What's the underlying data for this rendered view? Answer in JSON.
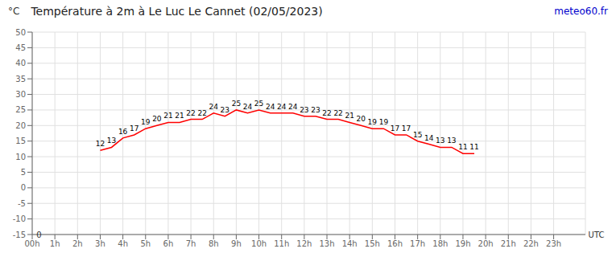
{
  "chart_data": {
    "type": "line",
    "title": "Température à 2m à Le Luc Le Cannet (02/05/2023)",
    "y_label": "°C",
    "x": [
      3.0,
      3.5,
      4.0,
      4.5,
      5.0,
      5.5,
      6.0,
      6.5,
      7.0,
      7.5,
      8.0,
      8.5,
      9.0,
      9.5,
      10.0,
      10.5,
      11.0,
      11.5,
      12.0,
      12.5,
      13.0,
      13.5,
      14.0,
      14.5,
      15.0,
      15.5,
      16.0,
      16.5,
      17.0,
      17.5,
      18.0,
      18.5,
      19.0,
      19.5
    ],
    "values": [
      12,
      13,
      16,
      17,
      19,
      20,
      21,
      21,
      22,
      22,
      24,
      23,
      25,
      24,
      25,
      24,
      24,
      24,
      23,
      23,
      22,
      22,
      21,
      20,
      19,
      19,
      17,
      17,
      15,
      14,
      13,
      13,
      11,
      11
    ],
    "color": "#ff0000",
    "data_labels": true,
    "grid": true,
    "xlim": [
      0,
      24.4
    ],
    "xticks": [
      {
        "value": 0,
        "label": "00h"
      },
      {
        "value": 1,
        "label": "1h"
      },
      {
        "value": 2,
        "label": "2h"
      },
      {
        "value": 3,
        "label": "3h"
      },
      {
        "value": 4,
        "label": "4h"
      },
      {
        "value": 5,
        "label": "5h"
      },
      {
        "value": 6,
        "label": "6h"
      },
      {
        "value": 7,
        "label": "7h"
      },
      {
        "value": 8,
        "label": "8h"
      },
      {
        "value": 9,
        "label": "9h"
      },
      {
        "value": 10,
        "label": "10h"
      },
      {
        "value": 11,
        "label": "11h"
      },
      {
        "value": 12,
        "label": "12h"
      },
      {
        "value": 13,
        "label": "13h"
      },
      {
        "value": 14,
        "label": "14h"
      },
      {
        "value": 15,
        "label": "15h"
      },
      {
        "value": 16,
        "label": "16h"
      },
      {
        "value": 17,
        "label": "17h"
      },
      {
        "value": 18,
        "label": "18h"
      },
      {
        "value": 19,
        "label": "19h"
      },
      {
        "value": 20,
        "label": "20h"
      },
      {
        "value": 21,
        "label": "21h"
      },
      {
        "value": 22,
        "label": "22h"
      },
      {
        "value": 23,
        "label": "23h"
      }
    ],
    "ylim": [
      -15,
      50
    ],
    "yticks": [
      -15,
      -10,
      -5,
      0,
      5,
      10,
      15,
      20,
      25,
      30,
      35,
      40,
      45,
      50
    ],
    "annotations": [
      {
        "text": "meteo60.fr",
        "color": "#0000cc"
      },
      {
        "text": "0",
        "x": 0.01,
        "y": -15
      },
      {
        "text": "UTC",
        "x": 24.35,
        "y": -15
      }
    ]
  }
}
